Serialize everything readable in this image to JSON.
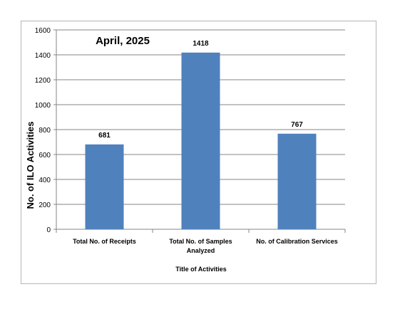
{
  "chart_data": {
    "type": "bar",
    "title": "April, 2025",
    "xlabel": "Title of Activities",
    "ylabel": "No. of ILO Activities",
    "categories": [
      [
        "Total No. of Receipts"
      ],
      [
        "Total No. of Samples",
        "Analyzed"
      ],
      [
        "No. of Calibration Services"
      ]
    ],
    "values": [
      681,
      1418,
      767
    ],
    "data_labels": [
      "681",
      "1418",
      "767"
    ],
    "ylim": [
      0,
      1600
    ],
    "yticks": [
      0,
      200,
      400,
      600,
      800,
      1000,
      1200,
      1400,
      1600
    ],
    "grid": true,
    "legend": "none",
    "bar_color": "#4f81bd"
  }
}
